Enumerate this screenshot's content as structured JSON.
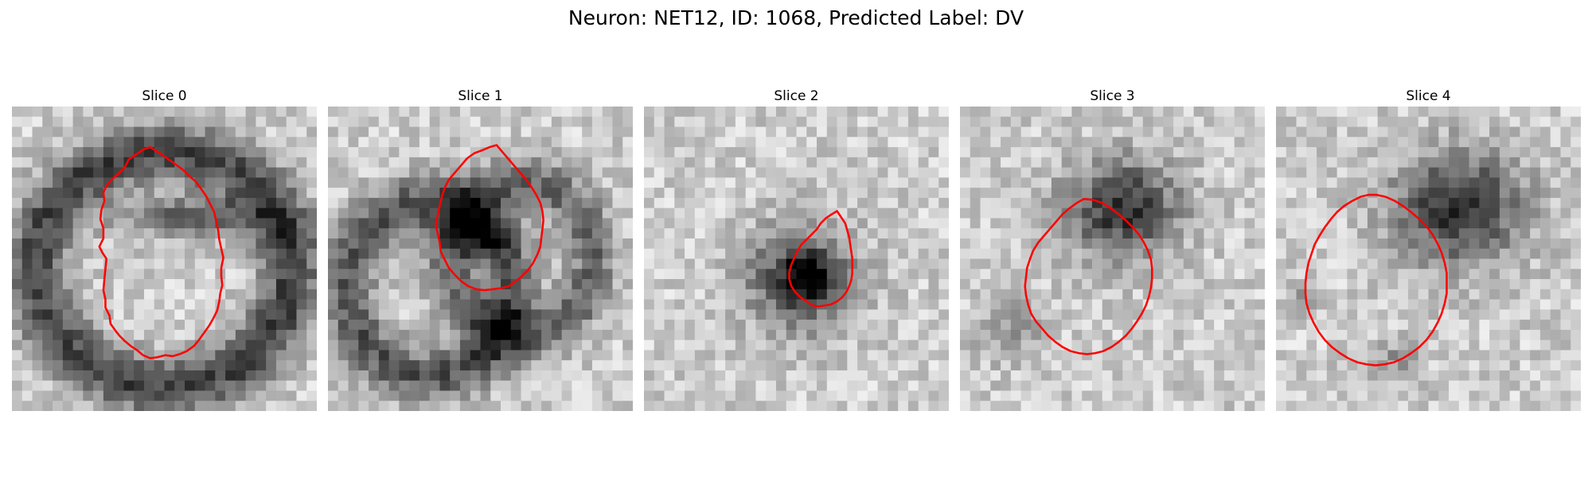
{
  "title": "Neuron: NET12, ID: 1068, Predicted Label: DV",
  "contour_color": "#ff0000",
  "grid_size": 30,
  "panels": [
    {
      "label": "Slice 0",
      "seed": 11,
      "blobs": [
        {
          "cx": 15,
          "cy": 16,
          "rx": 12.5,
          "ry": 11.5,
          "ring": true,
          "w": 2.8,
          "s": 140
        },
        {
          "cx": 18,
          "cy": 11,
          "rx": 9,
          "ry": 2.6,
          "s": 110
        }
      ],
      "contour": [
        [
          13.6,
          4.0
        ],
        [
          13.0,
          4.2
        ],
        [
          12.4,
          4.6
        ],
        [
          11.5,
          5.2
        ],
        [
          11.1,
          6.0
        ],
        [
          10.4,
          6.7
        ],
        [
          9.8,
          7.2
        ],
        [
          9.3,
          7.8
        ],
        [
          9.0,
          8.5
        ],
        [
          9.1,
          9.3
        ],
        [
          8.8,
          10.2
        ],
        [
          8.7,
          11.1
        ],
        [
          9.0,
          12.0
        ],
        [
          9.0,
          13.0
        ],
        [
          8.6,
          13.8
        ],
        [
          8.9,
          14.4
        ],
        [
          9.3,
          15.0
        ],
        [
          9.2,
          16.0
        ],
        [
          9.1,
          17.0
        ],
        [
          9.0,
          18.1
        ],
        [
          9.2,
          19.0
        ],
        [
          9.2,
          19.8
        ],
        [
          9.6,
          20.6
        ],
        [
          9.7,
          21.4
        ],
        [
          10.2,
          22.1
        ],
        [
          10.6,
          22.6
        ],
        [
          11.1,
          23.1
        ],
        [
          11.7,
          23.6
        ],
        [
          12.3,
          24.0
        ],
        [
          12.9,
          24.5
        ],
        [
          13.6,
          24.8
        ],
        [
          14.3,
          24.7
        ],
        [
          15.1,
          24.5
        ],
        [
          15.8,
          24.6
        ],
        [
          16.5,
          24.4
        ],
        [
          17.2,
          24.1
        ],
        [
          17.9,
          23.6
        ],
        [
          18.4,
          23.0
        ],
        [
          18.9,
          22.3
        ],
        [
          19.4,
          21.6
        ],
        [
          19.8,
          20.9
        ],
        [
          20.2,
          20.1
        ],
        [
          20.4,
          19.2
        ],
        [
          20.5,
          18.4
        ],
        [
          20.7,
          17.6
        ],
        [
          20.6,
          16.7
        ],
        [
          20.6,
          15.9
        ],
        [
          20.8,
          14.9
        ],
        [
          20.6,
          14.0
        ],
        [
          20.4,
          13.1
        ],
        [
          20.3,
          12.2
        ],
        [
          20.1,
          11.3
        ],
        [
          19.9,
          10.4
        ],
        [
          19.5,
          9.6
        ],
        [
          19.1,
          8.8
        ],
        [
          18.6,
          8.1
        ],
        [
          18.1,
          7.4
        ],
        [
          17.4,
          6.8
        ],
        [
          16.8,
          6.2
        ],
        [
          16.1,
          5.7
        ],
        [
          15.4,
          5.2
        ],
        [
          14.7,
          4.7
        ]
      ]
    },
    {
      "label": "Slice 1",
      "seed": 23,
      "blobs": [
        {
          "cx": 10,
          "cy": 18,
          "rx": 8,
          "ry": 8.5,
          "ring": true,
          "w": 2.6,
          "s": 120
        },
        {
          "cx": 19,
          "cy": 15,
          "rx": 7,
          "ry": 7.5,
          "ring": true,
          "w": 2.4,
          "s": 100
        },
        {
          "cx": 15,
          "cy": 13,
          "rx": 4,
          "ry": 2.5,
          "s": 90
        }
      ],
      "contour": [
        [
          16.6,
          3.8
        ],
        [
          15.9,
          4.0
        ],
        [
          15.2,
          4.3
        ],
        [
          14.4,
          4.6
        ],
        [
          13.7,
          5.1
        ],
        [
          13.1,
          5.8
        ],
        [
          12.5,
          6.5
        ],
        [
          11.9,
          7.2
        ],
        [
          11.5,
          8.0
        ],
        [
          11.2,
          8.9
        ],
        [
          11.0,
          9.8
        ],
        [
          10.8,
          10.7
        ],
        [
          10.6,
          11.6
        ],
        [
          10.8,
          12.5
        ],
        [
          11.0,
          13.4
        ],
        [
          11.1,
          14.3
        ],
        [
          11.5,
          15.1
        ],
        [
          11.9,
          15.9
        ],
        [
          12.5,
          16.6
        ],
        [
          13.1,
          17.2
        ],
        [
          13.8,
          17.7
        ],
        [
          14.6,
          18.0
        ],
        [
          15.4,
          18.1
        ],
        [
          16.2,
          18.0
        ],
        [
          17.0,
          17.9
        ],
        [
          17.8,
          17.7
        ],
        [
          18.5,
          17.2
        ],
        [
          19.1,
          16.7
        ],
        [
          19.7,
          16.1
        ],
        [
          20.2,
          15.4
        ],
        [
          20.6,
          14.6
        ],
        [
          20.9,
          13.8
        ],
        [
          21.0,
          12.9
        ],
        [
          21.1,
          12.1
        ],
        [
          21.2,
          11.2
        ],
        [
          21.1,
          10.3
        ],
        [
          20.9,
          9.5
        ],
        [
          20.5,
          8.7
        ],
        [
          20.0,
          7.9
        ],
        [
          19.5,
          7.2
        ],
        [
          18.9,
          6.5
        ],
        [
          18.3,
          5.8
        ],
        [
          17.7,
          5.1
        ],
        [
          17.1,
          4.4
        ]
      ]
    },
    {
      "label": "Slice 2",
      "seed": 37,
      "blobs": [
        {
          "cx": 15.5,
          "cy": 17,
          "rx": 6.5,
          "ry": 6.5,
          "s": 150
        },
        {
          "cx": 16,
          "cy": 16.5,
          "rx": 2.5,
          "ry": 2.5,
          "s": 100
        }
      ],
      "contour": [
        [
          19.0,
          10.3
        ],
        [
          18.5,
          10.6
        ],
        [
          17.9,
          11.0
        ],
        [
          17.4,
          11.5
        ],
        [
          17.0,
          12.1
        ],
        [
          16.5,
          12.6
        ],
        [
          16.0,
          13.1
        ],
        [
          15.5,
          13.6
        ],
        [
          15.1,
          14.2
        ],
        [
          14.8,
          14.9
        ],
        [
          14.5,
          15.6
        ],
        [
          14.3,
          16.3
        ],
        [
          14.3,
          17.0
        ],
        [
          14.5,
          17.7
        ],
        [
          14.9,
          18.3
        ],
        [
          15.4,
          18.8
        ],
        [
          16.0,
          19.2
        ],
        [
          16.6,
          19.6
        ],
        [
          17.2,
          19.7
        ],
        [
          17.8,
          19.6
        ],
        [
          18.4,
          19.5
        ],
        [
          19.0,
          19.2
        ],
        [
          19.5,
          18.8
        ],
        [
          19.9,
          18.3
        ],
        [
          20.2,
          17.7
        ],
        [
          20.4,
          17.1
        ],
        [
          20.5,
          16.4
        ],
        [
          20.5,
          15.7
        ],
        [
          20.5,
          15.0
        ],
        [
          20.4,
          14.3
        ],
        [
          20.3,
          13.6
        ],
        [
          20.2,
          12.9
        ],
        [
          20.0,
          12.2
        ],
        [
          19.8,
          11.5
        ],
        [
          19.4,
          10.9
        ]
      ]
    },
    {
      "label": "Slice 3",
      "seed": 53,
      "blobs": [
        {
          "cx": 16,
          "cy": 10,
          "rx": 7,
          "ry": 6,
          "s": 160
        },
        {
          "cx": 5,
          "cy": 22,
          "rx": 4,
          "ry": 4,
          "s": 60
        }
      ],
      "contour": [
        [
          12.2,
          9.1
        ],
        [
          11.5,
          9.5
        ],
        [
          10.8,
          10.0
        ],
        [
          10.1,
          10.6
        ],
        [
          9.5,
          11.3
        ],
        [
          8.9,
          12.0
        ],
        [
          8.3,
          12.7
        ],
        [
          7.7,
          13.4
        ],
        [
          7.2,
          14.2
        ],
        [
          6.9,
          15.0
        ],
        [
          6.6,
          15.9
        ],
        [
          6.5,
          16.8
        ],
        [
          6.4,
          17.7
        ],
        [
          6.5,
          18.6
        ],
        [
          6.7,
          19.5
        ],
        [
          7.0,
          20.4
        ],
        [
          7.5,
          21.2
        ],
        [
          8.1,
          21.9
        ],
        [
          8.7,
          22.6
        ],
        [
          9.4,
          23.2
        ],
        [
          10.1,
          23.7
        ],
        [
          10.9,
          24.1
        ],
        [
          11.7,
          24.3
        ],
        [
          12.5,
          24.4
        ],
        [
          13.3,
          24.3
        ],
        [
          14.1,
          24.1
        ],
        [
          14.9,
          23.7
        ],
        [
          15.6,
          23.2
        ],
        [
          16.3,
          22.6
        ],
        [
          16.9,
          21.9
        ],
        [
          17.4,
          21.2
        ],
        [
          17.9,
          20.4
        ],
        [
          18.3,
          19.6
        ],
        [
          18.6,
          18.7
        ],
        [
          18.8,
          17.8
        ],
        [
          18.9,
          16.9
        ],
        [
          18.9,
          16.0
        ],
        [
          18.8,
          15.1
        ],
        [
          18.5,
          14.2
        ],
        [
          18.1,
          13.4
        ],
        [
          17.6,
          12.6
        ],
        [
          17.0,
          11.9
        ],
        [
          16.3,
          11.2
        ],
        [
          15.6,
          10.6
        ],
        [
          14.8,
          10.0
        ],
        [
          14.0,
          9.5
        ],
        [
          13.1,
          9.2
        ]
      ]
    },
    {
      "label": "Slice 4",
      "seed": 71,
      "blobs": [
        {
          "cx": 18,
          "cy": 10,
          "rx": 8,
          "ry": 7,
          "s": 160
        },
        {
          "cx": 12,
          "cy": 25,
          "rx": 3,
          "ry": 2.5,
          "s": 60
        },
        {
          "cx": 3,
          "cy": 19,
          "rx": 2,
          "ry": 2,
          "s": 50
        }
      ],
      "contour": [
        [
          9.1,
          8.7
        ],
        [
          8.3,
          8.9
        ],
        [
          7.5,
          9.3
        ],
        [
          6.7,
          9.8
        ],
        [
          6.0,
          10.4
        ],
        [
          5.4,
          11.1
        ],
        [
          4.8,
          11.9
        ],
        [
          4.3,
          12.7
        ],
        [
          3.8,
          13.6
        ],
        [
          3.5,
          14.5
        ],
        [
          3.2,
          15.4
        ],
        [
          3.0,
          16.4
        ],
        [
          2.9,
          17.4
        ],
        [
          2.9,
          18.4
        ],
        [
          3.0,
          19.4
        ],
        [
          3.3,
          20.4
        ],
        [
          3.7,
          21.3
        ],
        [
          4.2,
          22.2
        ],
        [
          4.8,
          23.0
        ],
        [
          5.5,
          23.7
        ],
        [
          6.3,
          24.3
        ],
        [
          7.1,
          24.8
        ],
        [
          8.0,
          25.2
        ],
        [
          8.9,
          25.4
        ],
        [
          9.8,
          25.5
        ],
        [
          10.7,
          25.4
        ],
        [
          11.6,
          25.2
        ],
        [
          12.5,
          24.8
        ],
        [
          13.3,
          24.3
        ],
        [
          14.1,
          23.7
        ],
        [
          14.8,
          23.0
        ],
        [
          15.4,
          22.2
        ],
        [
          15.9,
          21.3
        ],
        [
          16.3,
          20.4
        ],
        [
          16.6,
          19.4
        ],
        [
          16.8,
          18.4
        ],
        [
          16.8,
          17.4
        ],
        [
          16.8,
          16.4
        ],
        [
          16.6,
          15.4
        ],
        [
          16.3,
          14.4
        ],
        [
          15.9,
          13.5
        ],
        [
          15.4,
          12.6
        ],
        [
          14.8,
          11.8
        ],
        [
          14.1,
          11.1
        ],
        [
          13.3,
          10.4
        ],
        [
          12.5,
          9.8
        ],
        [
          11.7,
          9.3
        ],
        [
          10.8,
          8.9
        ],
        [
          9.9,
          8.7
        ]
      ]
    }
  ]
}
